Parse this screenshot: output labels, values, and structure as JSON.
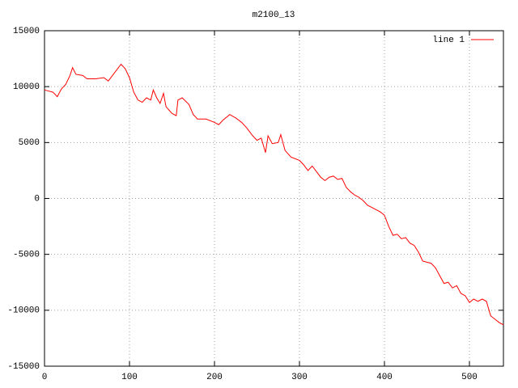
{
  "chart_data": {
    "type": "line",
    "title": "m2100_13",
    "x": [
      0,
      5,
      10,
      15,
      20,
      25,
      30,
      33,
      37,
      45,
      50,
      60,
      70,
      75,
      80,
      85,
      90,
      95,
      100,
      105,
      110,
      115,
      120,
      125,
      128,
      132,
      136,
      140,
      143,
      150,
      155,
      157,
      162,
      170,
      175,
      180,
      190,
      200,
      205,
      210,
      218,
      225,
      232,
      238,
      245,
      250,
      255,
      260,
      263,
      268,
      275,
      278,
      283,
      290,
      300,
      305,
      310,
      315,
      320,
      325,
      330,
      335,
      340,
      345,
      350,
      355,
      360,
      365,
      370,
      375,
      380,
      385,
      390,
      395,
      400,
      405,
      410,
      415,
      420,
      425,
      430,
      435,
      440,
      445,
      450,
      455,
      460,
      465,
      470,
      475,
      480,
      485,
      490,
      495,
      500,
      505,
      510,
      515,
      520,
      525,
      530,
      535,
      540
    ],
    "series": [
      {
        "name": "line 1",
        "color": "#ff0000",
        "values": [
          9700,
          9600,
          9500,
          9100,
          9800,
          10200,
          11000,
          11700,
          11100,
          11000,
          10700,
          10700,
          10800,
          10500,
          11000,
          11500,
          12000,
          11600,
          10800,
          9500,
          8800,
          8600,
          9000,
          8800,
          9700,
          9000,
          8500,
          9400,
          8200,
          7600,
          7400,
          8800,
          9000,
          8400,
          7500,
          7100,
          7100,
          6800,
          6600,
          7000,
          7500,
          7200,
          6800,
          6300,
          5600,
          5200,
          5400,
          4100,
          5600,
          4900,
          5000,
          5700,
          4300,
          3700,
          3400,
          3000,
          2500,
          2900,
          2400,
          1900,
          1600,
          1900,
          2000,
          1700,
          1800,
          1000,
          600,
          300,
          100,
          -200,
          -600,
          -800,
          -1000,
          -1200,
          -1500,
          -2500,
          -3300,
          -3200,
          -3600,
          -3500,
          -4000,
          -4200,
          -4800,
          -5600,
          -5700,
          -5800,
          -6200,
          -6900,
          -7600,
          -7500,
          -8000,
          -7800,
          -8500,
          -8700,
          -9300,
          -9000,
          -9200,
          -9000,
          -9200,
          -10500,
          -10800,
          -11100,
          -11300
        ]
      }
    ],
    "xlim": [
      0,
      540
    ],
    "ylim": [
      -15000,
      15000
    ],
    "xticks": [
      0,
      100,
      200,
      300,
      400,
      500
    ],
    "yticks": [
      -15000,
      -10000,
      -5000,
      0,
      5000,
      10000,
      15000
    ],
    "grid": true,
    "legend": "top-right"
  }
}
